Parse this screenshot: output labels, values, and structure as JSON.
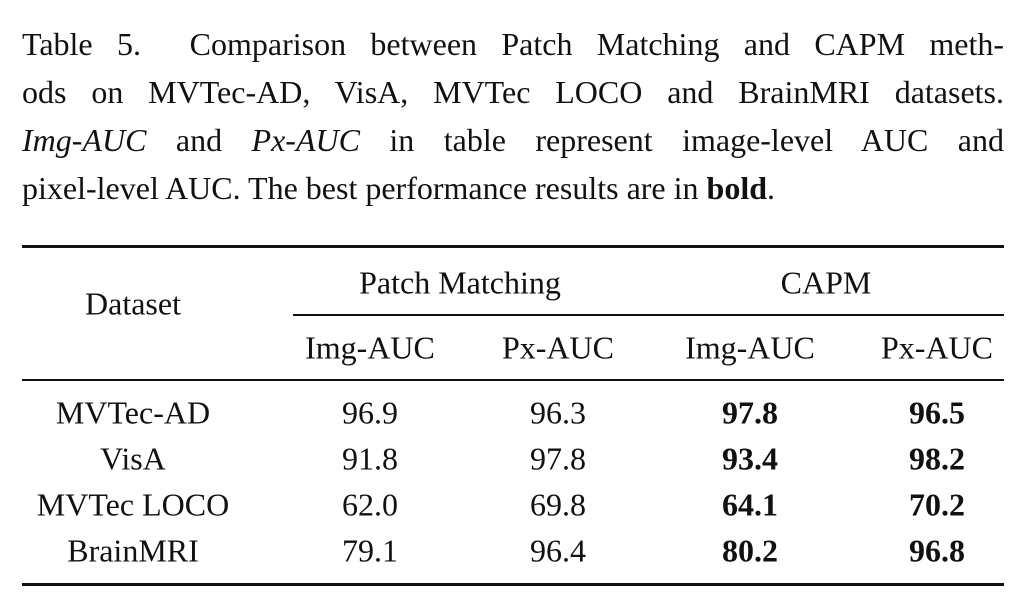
{
  "caption": {
    "lines": [
      [
        "Table 5.",
        "Comparison between Patch Matching and CAPM meth-"
      ],
      [
        "ods on MVTec-AD, VisA, MVTec LOCO and BrainMRI datasets."
      ],
      [
        "Img-AUC",
        "and",
        "Px-AUC",
        "in table represent image-level AUC and"
      ],
      [
        "pixel-level AUC. The best performance results are in",
        "bold",
        "."
      ]
    ]
  },
  "table": {
    "header": {
      "dataset": "Dataset",
      "groups": [
        "Patch Matching",
        "CAPM"
      ],
      "columns": [
        "Img-AUC",
        "Px-AUC",
        "Img-AUC",
        "Px-AUC"
      ]
    },
    "rows": [
      [
        "MVTec-AD",
        "96.9",
        "96.3",
        "97.8",
        "96.5"
      ],
      [
        "VisA",
        "91.8",
        "97.8",
        "93.4",
        "98.2"
      ],
      [
        "MVTec LOCO",
        "62.0",
        "69.8",
        "64.1",
        "70.2"
      ],
      [
        "BrainMRI",
        "79.1",
        "96.4",
        "80.2",
        "96.8"
      ]
    ]
  }
}
